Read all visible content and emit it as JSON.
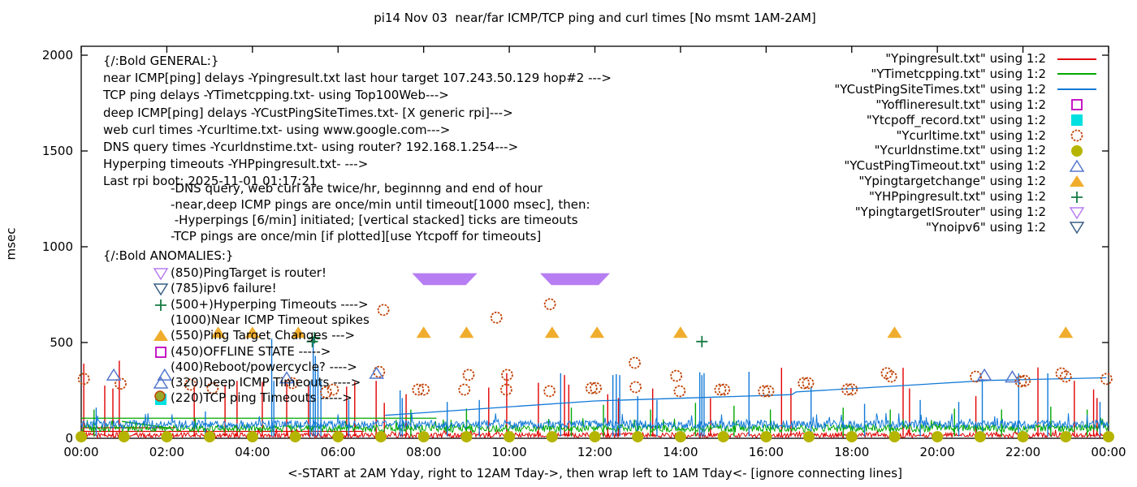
{
  "title": "pi14 Nov 03  near/far ICMP/TCP ping and curl times [No msmt 1AM-2AM]",
  "axes": {
    "y_label": "msec",
    "x_label": "<-START at 2AM Yday, right to 12AM Tday->, then wrap left to 1AM Tday<- [ignore connecting lines]",
    "y_ticks": [
      "0",
      "500",
      "1000",
      "1500",
      "2000"
    ],
    "x_ticks": [
      "00:00",
      "02:00",
      "04:00",
      "06:00",
      "08:00",
      "10:00",
      "12:00",
      "14:00",
      "16:00",
      "18:00",
      "20:00",
      "22:00",
      "00:00"
    ]
  },
  "annotations": {
    "general": [
      "{/:Bold GENERAL:}",
      "near ICMP[ping] delays -Ypingresult.txt last hour target 107.243.50.129 hop#2 --->",
      "TCP ping delays -YTimetcpping.txt- using Top100Web--->",
      "deep ICMP[ping] delays -YCustPingSiteTimes.txt- [X generic rpi]--->",
      "web curl times -Ycurltime.txt- using www.google.com--->",
      "DNS query times -Ycurldnstime.txt- using router? 192.168.1.254--->",
      "Hyperping timeouts -YHPpingresult.txt- --->",
      "Last rpi boot: 2025-11-01 01:17:21"
    ],
    "notes": [
      "-DNS query, web curl are twice/hr, beginnng and end of hour",
      "-near,deep ICMP pings are once/min until timeout[1000 msec], then:",
      " -Hyperpings [6/min] initiated; [vertical stacked] ticks are timeouts",
      "-TCP pings are once/min [if plotted][use Ytcpoff for timeouts]"
    ],
    "anomalies_title": "{/:Bold ANOMALIES:}",
    "anomalies": [
      {
        "icon": "open-nabla",
        "color": "#b77df2",
        "text": "(850)PingTarget is router!"
      },
      {
        "icon": "open-nabla",
        "color": "#3a5f85",
        "text": "(785)ipv6 failure!"
      },
      {
        "icon": "plus",
        "color": "#147a42",
        "text": "(500+)Hyperping Timeouts ---->"
      },
      {
        "icon": "none",
        "color": "",
        "text": "(1000)Near ICMP Timeout spikes"
      },
      {
        "icon": "filled-triangle",
        "color": "#f0ad2d",
        "text": "(550)Ping Target Changes --->"
      },
      {
        "icon": "open-square",
        "color": "#bf00bf",
        "text": "(450)OFFLINE STATE ----->"
      },
      {
        "icon": "none",
        "color": "",
        "text": "(400)Reboot/powercycle? ---->"
      },
      {
        "icon": "open-triangle",
        "color": "#5577cc",
        "text": "(320)Deep ICMP Timeouts ---->"
      },
      {
        "icon": "cyan-square-dot",
        "color": "#00e0e0",
        "text": "(220)TCP ping Timeouts ----->"
      }
    ]
  },
  "legend": {
    "entries": [
      {
        "label": "\"Ypingresult.txt\" using 1:2",
        "sample": "line",
        "color": "#e00000"
      },
      {
        "label": "\"YTimetcpping.txt\" using 1:2",
        "sample": "line",
        "color": "#00a800"
      },
      {
        "label": "\"YCustPingSiteTimes.txt\" using 1:2",
        "sample": "line",
        "color": "#1179d8"
      },
      {
        "label": "\"Yofflineresult.txt\" using 1:2",
        "sample": "open-square",
        "color": "#bf00bf"
      },
      {
        "label": "\"Ytcpoff_record.txt\" using 1:2",
        "sample": "filled-square",
        "color": "#00e0e0"
      },
      {
        "label": "\"Ycurltime.txt\" using 1:2",
        "sample": "open-circle",
        "color": "#bf4105"
      },
      {
        "label": "\"Ycurldnstime.txt\" using 1:2",
        "sample": "filled-circle",
        "color": "#b5b400"
      },
      {
        "label": "\"YCustPingTimeout.txt\" using 1:2",
        "sample": "open-triangle",
        "color": "#5577cc"
      },
      {
        "label": "\"Ypingtargetchange\" using 1:2",
        "sample": "filled-triangle",
        "color": "#f0ad2d"
      },
      {
        "label": "\"YHPpingresult.txt\" using 1:2",
        "sample": "plus",
        "color": "#147a42"
      },
      {
        "label": "\"YpingtargetISrouter\" using 1:2",
        "sample": "open-nabla",
        "color": "#b77df2"
      },
      {
        "label": "\"Ynoipv6\" using 1:2",
        "sample": "open-nabla",
        "color": "#3a5f85"
      }
    ]
  },
  "chart_data": {
    "type": "line",
    "x_unit": "hours",
    "x_range": [
      0,
      24
    ],
    "y_range": [
      0,
      2000
    ],
    "ylabel": "msec",
    "grid": false,
    "series": [
      {
        "name": "Ypingresult.txt",
        "style": "line",
        "color": "#e00000",
        "baseline": {
          "level": 16,
          "jitter": 13
        },
        "flat_segments": [
          [
            0,
            2.2,
            55
          ],
          [
            0,
            6.6,
            36
          ]
        ],
        "spikes": [
          [
            0.06,
            390
          ],
          [
            0.55,
            275
          ],
          [
            0.74,
            260
          ],
          [
            0.89,
            405
          ],
          [
            2.64,
            270
          ],
          [
            3.36,
            280
          ],
          [
            3.64,
            300
          ],
          [
            4.23,
            295
          ],
          [
            4.8,
            300
          ],
          [
            5.31,
            280
          ],
          [
            6.2,
            270
          ],
          [
            6.39,
            295
          ],
          [
            6.89,
            300
          ],
          [
            7.08,
            185
          ],
          [
            7.59,
            230
          ],
          [
            9.52,
            265
          ],
          [
            9.94,
            340
          ],
          [
            10.68,
            290
          ],
          [
            11.29,
            330
          ],
          [
            11.39,
            280
          ],
          [
            12.3,
            230
          ],
          [
            12.55,
            210
          ],
          [
            13.35,
            260
          ],
          [
            14.7,
            210
          ],
          [
            16.36,
            368
          ],
          [
            16.58,
            262
          ],
          [
            19.2,
            368
          ],
          [
            19.35,
            260
          ],
          [
            20.9,
            220
          ],
          [
            22.35,
            370
          ],
          [
            23.2,
            300
          ],
          [
            23.65,
            255
          ],
          [
            23.73,
            210
          ]
        ]
      },
      {
        "name": "YTimetcpping.txt",
        "style": "line",
        "color": "#00a800",
        "baseline": {
          "level": 52,
          "jitter": 20
        },
        "flat_segments": [
          [
            0,
            8.3,
            105
          ]
        ],
        "diagonal": [
          [
            0.95,
            88
          ],
          [
            2.1,
            52
          ]
        ],
        "spikes": [
          [
            0.3,
            150
          ],
          [
            7.7,
            150
          ],
          [
            9.0,
            155
          ],
          [
            11.45,
            160
          ],
          [
            12.2,
            175
          ],
          [
            13.3,
            150
          ],
          [
            14.35,
            185
          ],
          [
            15.25,
            170
          ],
          [
            16.1,
            150
          ],
          [
            17.8,
            160
          ],
          [
            18.9,
            150
          ],
          [
            20.4,
            155
          ],
          [
            21.5,
            150
          ],
          [
            22.65,
            165
          ],
          [
            23.5,
            150
          ]
        ]
      },
      {
        "name": "YCustPingSiteTimes.txt",
        "style": "line",
        "color": "#1179d8",
        "baseline": {
          "level": 72,
          "jitter": 22
        },
        "diagonal": [
          [
            7.1,
            120
          ],
          [
            12.0,
            195
          ],
          [
            16.6,
            228
          ],
          [
            16.7,
            242
          ],
          [
            21.2,
            302
          ],
          [
            23.95,
            316
          ]
        ],
        "spikes": [
          [
            0.35,
            160
          ],
          [
            2.9,
            140
          ],
          [
            4.45,
            520
          ],
          [
            4.5,
            300
          ],
          [
            5.35,
            300
          ],
          [
            5.42,
            530
          ],
          [
            5.47,
            430
          ],
          [
            5.53,
            380
          ],
          [
            5.6,
            300
          ],
          [
            6.25,
            200
          ],
          [
            7.45,
            250
          ],
          [
            7.5,
            210
          ],
          [
            8.55,
            190
          ],
          [
            9.3,
            200
          ],
          [
            11.2,
            340
          ],
          [
            12.42,
            330
          ],
          [
            12.5,
            335
          ],
          [
            12.58,
            330
          ],
          [
            13.0,
            220
          ],
          [
            13.45,
            200
          ],
          [
            14.45,
            345
          ],
          [
            14.5,
            330
          ],
          [
            14.55,
            340
          ],
          [
            15.6,
            347
          ],
          [
            17.05,
            267
          ],
          [
            18.3,
            180
          ],
          [
            19.6,
            200
          ],
          [
            20.5,
            190
          ],
          [
            21.05,
            310
          ],
          [
            21.9,
            339
          ],
          [
            22.58,
            339
          ],
          [
            23.8,
            190
          ]
        ]
      },
      {
        "name": "Yofflineresult.txt",
        "style": "marker",
        "marker": "open-square",
        "color": "#bf00bf",
        "points": []
      },
      {
        "name": "Ytcpoff_record.txt",
        "style": "marker",
        "marker": "filled-square",
        "color": "#00e0e0",
        "points": []
      },
      {
        "name": "Ycurltime.txt",
        "style": "marker",
        "marker": "open-circle",
        "color": "#bf4105",
        "points": [
          [
            0.06,
            310
          ],
          [
            0.92,
            285
          ],
          [
            2.55,
            280
          ],
          [
            3.07,
            262
          ],
          [
            4.93,
            288
          ],
          [
            5.72,
            240
          ],
          [
            5.88,
            254
          ],
          [
            6.96,
            347
          ],
          [
            7.06,
            670
          ],
          [
            7.87,
            254
          ],
          [
            8.0,
            254
          ],
          [
            8.95,
            254
          ],
          [
            9.05,
            331
          ],
          [
            9.7,
            630
          ],
          [
            9.93,
            254
          ],
          [
            9.95,
            331
          ],
          [
            10.94,
            246
          ],
          [
            10.95,
            700
          ],
          [
            11.92,
            262
          ],
          [
            12.02,
            262
          ],
          [
            12.93,
            394
          ],
          [
            12.95,
            267
          ],
          [
            13.9,
            326
          ],
          [
            13.98,
            246
          ],
          [
            14.93,
            254
          ],
          [
            15.02,
            254
          ],
          [
            15.95,
            246
          ],
          [
            16.05,
            246
          ],
          [
            16.88,
            288
          ],
          [
            16.98,
            288
          ],
          [
            17.9,
            255
          ],
          [
            18.0,
            255
          ],
          [
            18.82,
            340
          ],
          [
            18.92,
            322
          ],
          [
            20.9,
            322
          ],
          [
            21.95,
            297
          ],
          [
            22.04,
            300
          ],
          [
            22.9,
            339
          ],
          [
            23.0,
            322
          ],
          [
            23.95,
            310
          ]
        ]
      },
      {
        "name": "Ycurldnstime.txt",
        "style": "marker",
        "marker": "filled-circle",
        "color": "#b5b400",
        "points_rule": {
          "start": 0,
          "end": 24,
          "interval": 1,
          "value": 8
        }
      },
      {
        "name": "YCustPingTimeout.txt",
        "style": "marker",
        "marker": "open-triangle",
        "color": "#5577cc",
        "points": [
          [
            0.76,
            330
          ],
          [
            1.95,
            330
          ],
          [
            4.8,
            315
          ],
          [
            6.9,
            339
          ],
          [
            21.1,
            330
          ],
          [
            21.75,
            320
          ]
        ]
      },
      {
        "name": "Ypingtargetchange",
        "style": "marker",
        "marker": "filled-triangle",
        "color": "#f0ad2d",
        "value": 550,
        "hours": [
          3.2,
          4.0,
          5.07,
          8.0,
          9.0,
          11.0,
          12.05,
          14.0,
          19.0,
          23.0
        ]
      },
      {
        "name": "YHPpingresult.txt",
        "style": "marker",
        "marker": "plus",
        "color": "#147a42",
        "points": [
          [
            5.4,
            505
          ],
          [
            5.45,
            525
          ],
          [
            14.5,
            505
          ]
        ]
      },
      {
        "name": "YpingtargetISrouter",
        "style": "band",
        "color": "#b77df2",
        "bands": [
          [
            7.88,
            9.1
          ],
          [
            10.87,
            12.2
          ]
        ],
        "band_values": [
          800,
          862
        ]
      },
      {
        "name": "Ynoipv6",
        "style": "marker",
        "marker": "open-nabla",
        "color": "#3a5f85",
        "points": []
      }
    ]
  }
}
